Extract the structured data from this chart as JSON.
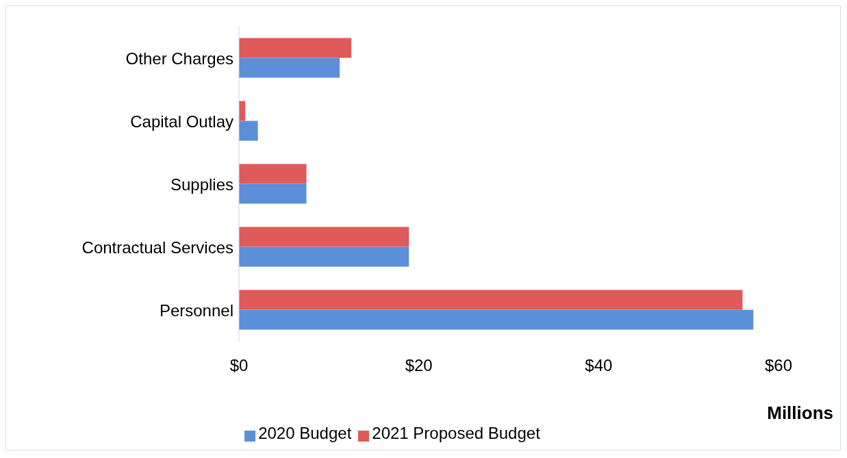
{
  "chart_data": {
    "type": "bar",
    "orientation": "horizontal",
    "categories": [
      "Other Charges",
      "Capital Outlay",
      "Supplies",
      "Contractual Services",
      "Personnel"
    ],
    "series": [
      {
        "name": "2021 Proposed Budget",
        "color": "#e05a5a",
        "values": [
          12.5,
          0.7,
          7.5,
          18.9,
          56.0
        ]
      },
      {
        "name": "2020 Budget",
        "color": "#5b8fd9",
        "values": [
          11.2,
          2.1,
          7.5,
          18.9,
          57.2
        ]
      }
    ],
    "xlabel": "Millions",
    "xlim": [
      0,
      60
    ],
    "xticks": [
      {
        "value": 0,
        "label": "$0"
      },
      {
        "value": 20,
        "label": "$20"
      },
      {
        "value": 40,
        "label": "$40"
      },
      {
        "value": 60,
        "label": "$60"
      }
    ],
    "grid": false,
    "legend": "bottom"
  }
}
